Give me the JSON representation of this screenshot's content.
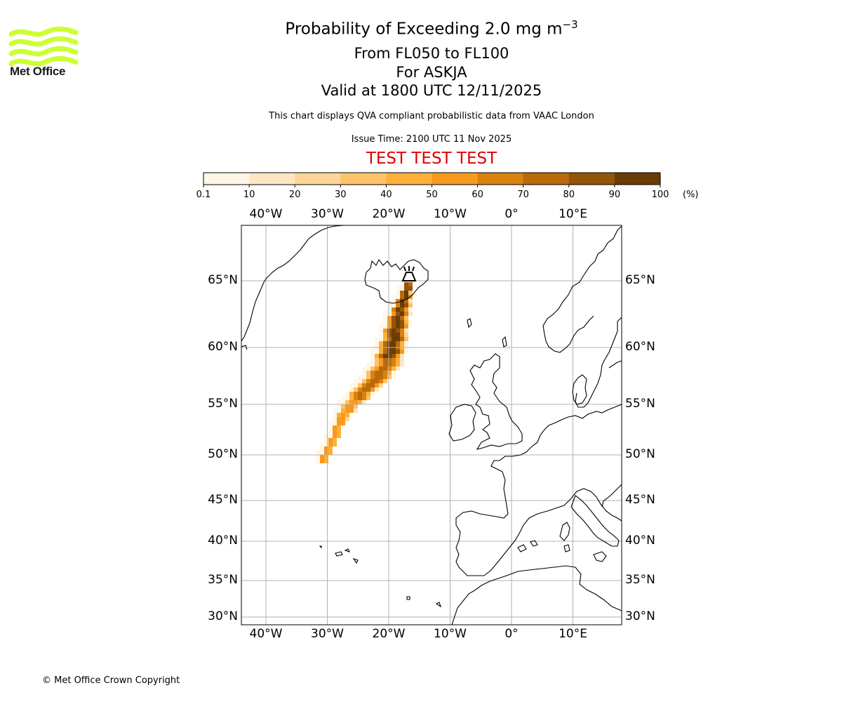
{
  "logo": {
    "text": "Met Office",
    "color": "#ccff33"
  },
  "header": {
    "title_main": "Probability of Exceeding 2.0 mg m",
    "title_exp": "−3",
    "flight_levels": "From FL050 to FL100",
    "volcano": "For ASKJA",
    "valid_time": "Valid at 1800 UTC 12/11/2025",
    "disclaimer": "This chart displays QVA compliant probabilistic data from VAAC London",
    "issue_time": "Issue Time: 2100 UTC 11 Nov 2025",
    "test_banner": "TEST TEST TEST",
    "test_color": "#e00000"
  },
  "colorbar": {
    "ticks": [
      "0.1",
      "10",
      "20",
      "30",
      "40",
      "50",
      "60",
      "70",
      "80",
      "90",
      "100"
    ],
    "unit": "(%)",
    "colors": [
      "#fff6e8",
      "#ffe6c2",
      "#ffd69a",
      "#ffc368",
      "#ffb03c",
      "#f79a1e",
      "#d9820f",
      "#b96a0a",
      "#945407",
      "#6a3d06"
    ]
  },
  "map": {
    "lon_labels": [
      {
        "text": "40°W",
        "lon": -40
      },
      {
        "text": "30°W",
        "lon": -30
      },
      {
        "text": "20°W",
        "lon": -20
      },
      {
        "text": "10°W",
        "lon": -10
      },
      {
        "text": "0°",
        "lon": 0
      },
      {
        "text": "10°E",
        "lon": 10
      }
    ],
    "lat_labels": [
      {
        "text": "65°N",
        "lat": 65
      },
      {
        "text": "60°N",
        "lat": 60
      },
      {
        "text": "55°N",
        "lat": 55
      },
      {
        "text": "50°N",
        "lat": 50
      },
      {
        "text": "45°N",
        "lat": 45
      },
      {
        "text": "40°N",
        "lat": 40
      },
      {
        "text": "35°N",
        "lat": 35
      },
      {
        "text": "30°N",
        "lat": 30
      }
    ],
    "volcano_name": "ASKJA",
    "plume_probability_band": "0.1–100 %"
  },
  "footer": {
    "copyright": "© Met Office Crown Copyright"
  }
}
